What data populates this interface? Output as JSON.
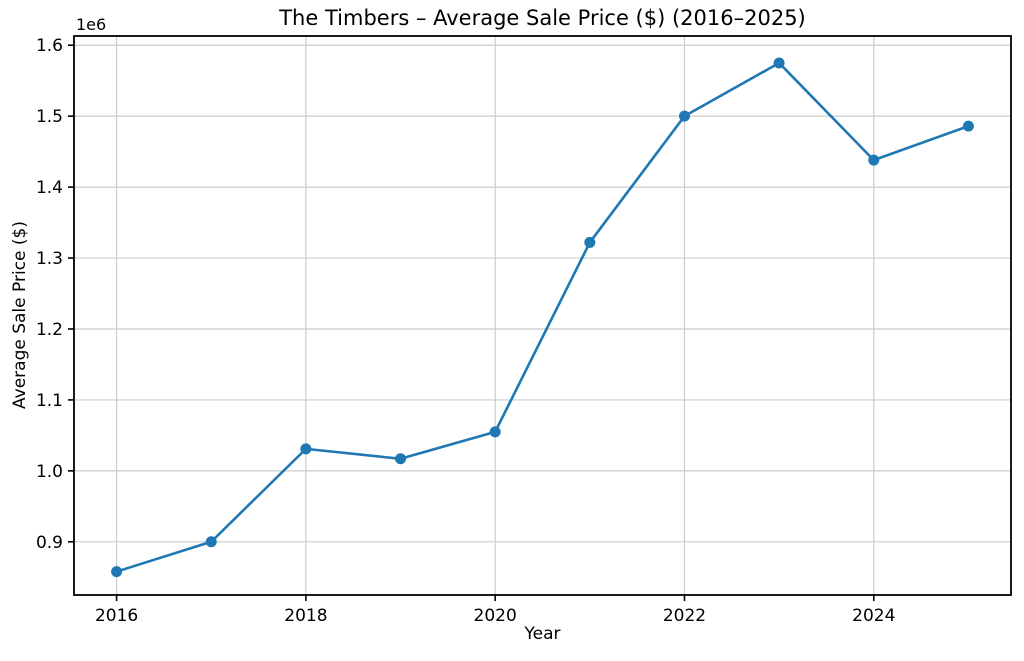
{
  "figure": {
    "background_color": "#ffffff"
  },
  "chart_data": {
    "type": "line",
    "title": "The Timbers – Average Sale Price ($) (2016–2025)",
    "xlabel": "Year",
    "ylabel": "Average Sale Price ($)",
    "y_offset_label": "1e6",
    "series": [
      {
        "name": "Average Sale Price ($)",
        "x": [
          2016,
          2017,
          2018,
          2019,
          2020,
          2021,
          2022,
          2023,
          2024,
          2025
        ],
        "values": [
          858000,
          900000,
          1031000,
          1017000,
          1055000,
          1322000,
          1500000,
          1575000,
          1438000,
          1486000
        ]
      }
    ],
    "xlim": [
      2015.55,
      2025.45
    ],
    "ylim": [
      825000,
      1613000
    ],
    "xticks": {
      "values": [
        2016,
        2018,
        2020,
        2022,
        2024
      ],
      "labels": [
        "2016",
        "2018",
        "2020",
        "2022",
        "2024"
      ]
    },
    "yticks": {
      "values": [
        900000,
        1000000,
        1100000,
        1200000,
        1300000,
        1400000,
        1500000,
        1600000
      ],
      "labels": [
        "0.9",
        "1.0",
        "1.1",
        "1.2",
        "1.3",
        "1.4",
        "1.5",
        "1.6"
      ]
    },
    "grid": true,
    "legend": false,
    "line_color": "#1f77b4",
    "marker": "o",
    "marker_color": "#1f77b4",
    "grid_color": "#cccccc",
    "axis_color": "#000000",
    "text_color": "#000000",
    "plot_background_color": "#ffffff"
  }
}
